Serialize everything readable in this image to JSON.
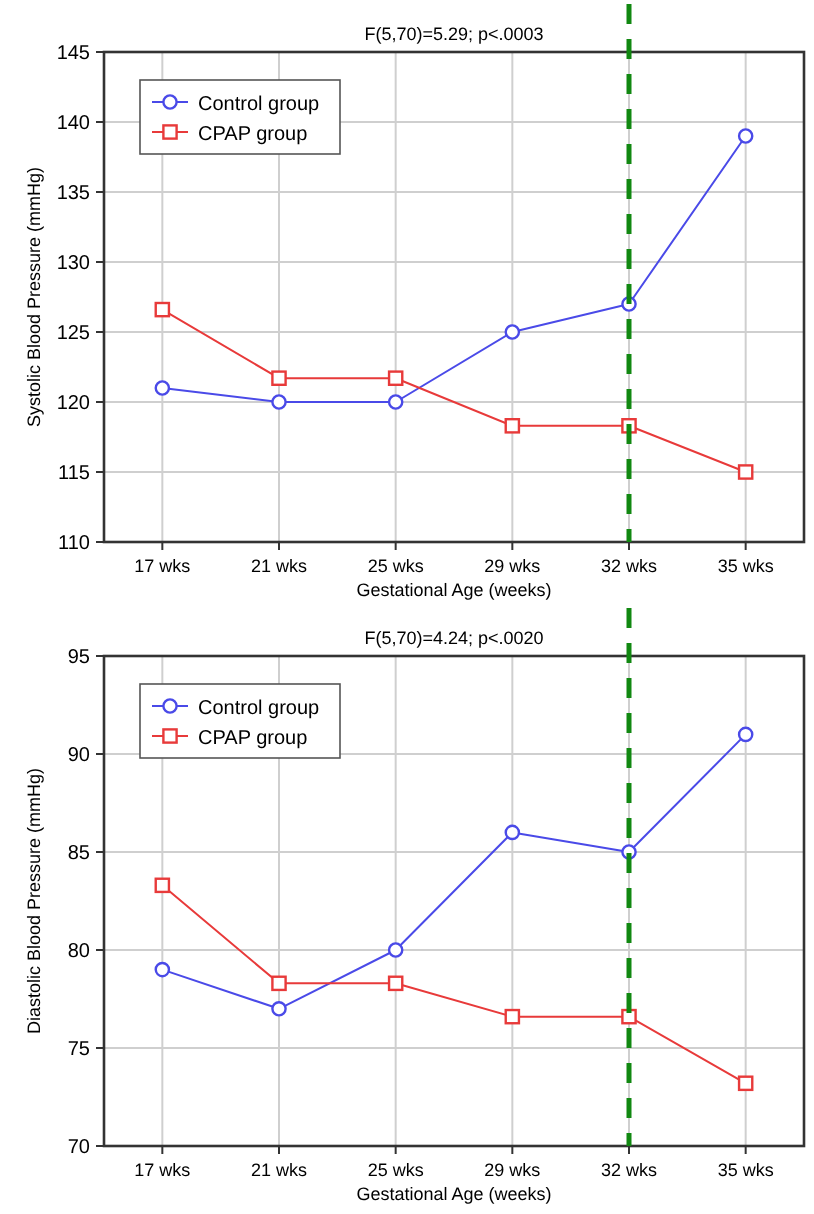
{
  "chart_data": [
    {
      "type": "line",
      "title": "F(5,70)=5.29; p<.0003",
      "xlabel": "Gestational Age (weeks)",
      "ylabel": "Systolic Blood Pressure (mmHg)",
      "categories": [
        "17 wks",
        "21 wks",
        "25 wks",
        "29 wks",
        "32 wks",
        "35 wks"
      ],
      "ylim": [
        110,
        145
      ],
      "yticks": [
        110,
        115,
        120,
        125,
        130,
        135,
        140,
        145
      ],
      "grid": true,
      "legend": "top left",
      "line_style": "solid",
      "series": [
        {
          "name": "Control group",
          "color": "#4a4ae8",
          "marker": "circle",
          "values": [
            121,
            120,
            120,
            125,
            127,
            139
          ]
        },
        {
          "name": "CPAP group",
          "color": "#e83a3a",
          "marker": "square",
          "values": [
            126.6,
            121.7,
            121.7,
            118.3,
            118.3,
            115
          ]
        }
      ],
      "ref_lines": [
        {
          "axis": "x",
          "value": "32 wks",
          "color": "#118811",
          "line_style": "dashed"
        }
      ]
    },
    {
      "type": "line",
      "title": "F(5,70)=4.24; p<.0020",
      "xlabel": "Gestational Age (weeks)",
      "ylabel": "Diastolic Blood Pressure (mmHg)",
      "categories": [
        "17 wks",
        "21 wks",
        "25 wks",
        "29 wks",
        "32 wks",
        "35 wks"
      ],
      "ylim": [
        70,
        95
      ],
      "yticks": [
        70,
        75,
        80,
        85,
        90,
        95
      ],
      "grid": true,
      "legend": "top left",
      "line_style": "solid",
      "series": [
        {
          "name": "Control group",
          "color": "#4a4ae8",
          "marker": "circle",
          "values": [
            79,
            77,
            80,
            86,
            85,
            91
          ]
        },
        {
          "name": "CPAP group",
          "color": "#e83a3a",
          "marker": "square",
          "values": [
            83.3,
            78.3,
            78.3,
            76.6,
            76.6,
            73.2
          ]
        }
      ],
      "ref_lines": [
        {
          "axis": "x",
          "value": "32 wks",
          "color": "#118811",
          "line_style": "dashed"
        }
      ]
    }
  ]
}
